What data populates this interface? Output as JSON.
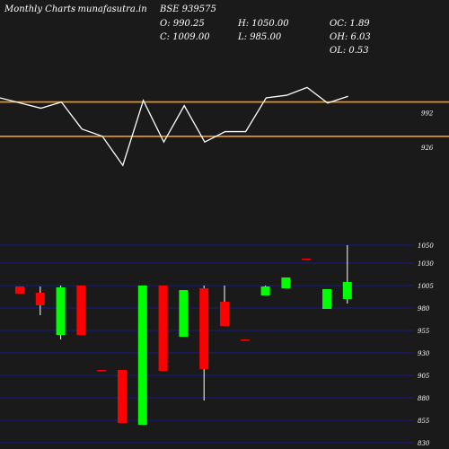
{
  "header": {
    "title": "Monthly Charts",
    "source": "- munafasutra.in",
    "symbol": "BSE 939575",
    "open": "O: 990.25",
    "close": "C: 1009.00",
    "high": "H: 1050.00",
    "low": "L: 985.00",
    "oc": "OC: 1.89",
    "oh": "OH: 6.03",
    "ol": "OL: 0.53"
  },
  "colors": {
    "background": "#1a1a1a",
    "up": "#00ff00",
    "down": "#ff0000",
    "level_line": "#ff9900",
    "grid": "#1a1a8a",
    "text": "#ffffff"
  },
  "chart_data": [
    {
      "type": "line",
      "panel": "indicator",
      "y_ticks": [
        "992",
        "926"
      ],
      "levels": [
        992,
        926
      ],
      "values": [
        1000,
        990,
        980,
        992,
        940,
        926,
        870,
        995,
        915,
        985,
        915,
        935,
        935,
        1000,
        1005,
        1020,
        990,
        1003
      ]
    },
    {
      "type": "candlestick",
      "panel": "price",
      "ylim": [
        830,
        1055
      ],
      "y_ticks": [
        "1050",
        "1030",
        "1005",
        "980",
        "955",
        "930",
        "905",
        "880",
        "855",
        "830"
      ],
      "candles": [
        {
          "open": 1004,
          "close": 996,
          "high": 1004,
          "low": 996
        },
        {
          "open": 997,
          "close": 983,
          "high": 1004,
          "low": 972
        },
        {
          "open": 950,
          "close": 1003,
          "high": 1005,
          "low": 945
        },
        {
          "open": 1005,
          "close": 950,
          "high": 1005,
          "low": 950
        },
        {
          "open": 911,
          "close": 910,
          "high": 911,
          "low": 910
        },
        {
          "open": 911,
          "close": 852,
          "high": 911,
          "low": 852
        },
        {
          "open": 850,
          "close": 1005,
          "high": 1005,
          "low": 850
        },
        {
          "open": 1005,
          "close": 910,
          "high": 1005,
          "low": 910
        },
        {
          "open": 948,
          "close": 1000,
          "high": 1000,
          "low": 948
        },
        {
          "open": 1002,
          "close": 912,
          "high": 1005,
          "low": 877
        },
        {
          "open": 987,
          "close": 960,
          "high": 1005,
          "low": 960
        },
        {
          "open": 945,
          "close": 944,
          "high": 945,
          "low": 944
        },
        {
          "open": 994,
          "close": 1004,
          "high": 1005,
          "low": 994
        },
        {
          "open": 1002,
          "close": 1014,
          "high": 1014,
          "low": 1002
        },
        {
          "open": 1035,
          "close": 1034,
          "high": 1035,
          "low": 1034
        },
        {
          "open": 979,
          "close": 1001,
          "high": 1001,
          "low": 979
        },
        {
          "open": 990,
          "close": 1009,
          "high": 1050,
          "low": 985
        }
      ]
    }
  ]
}
